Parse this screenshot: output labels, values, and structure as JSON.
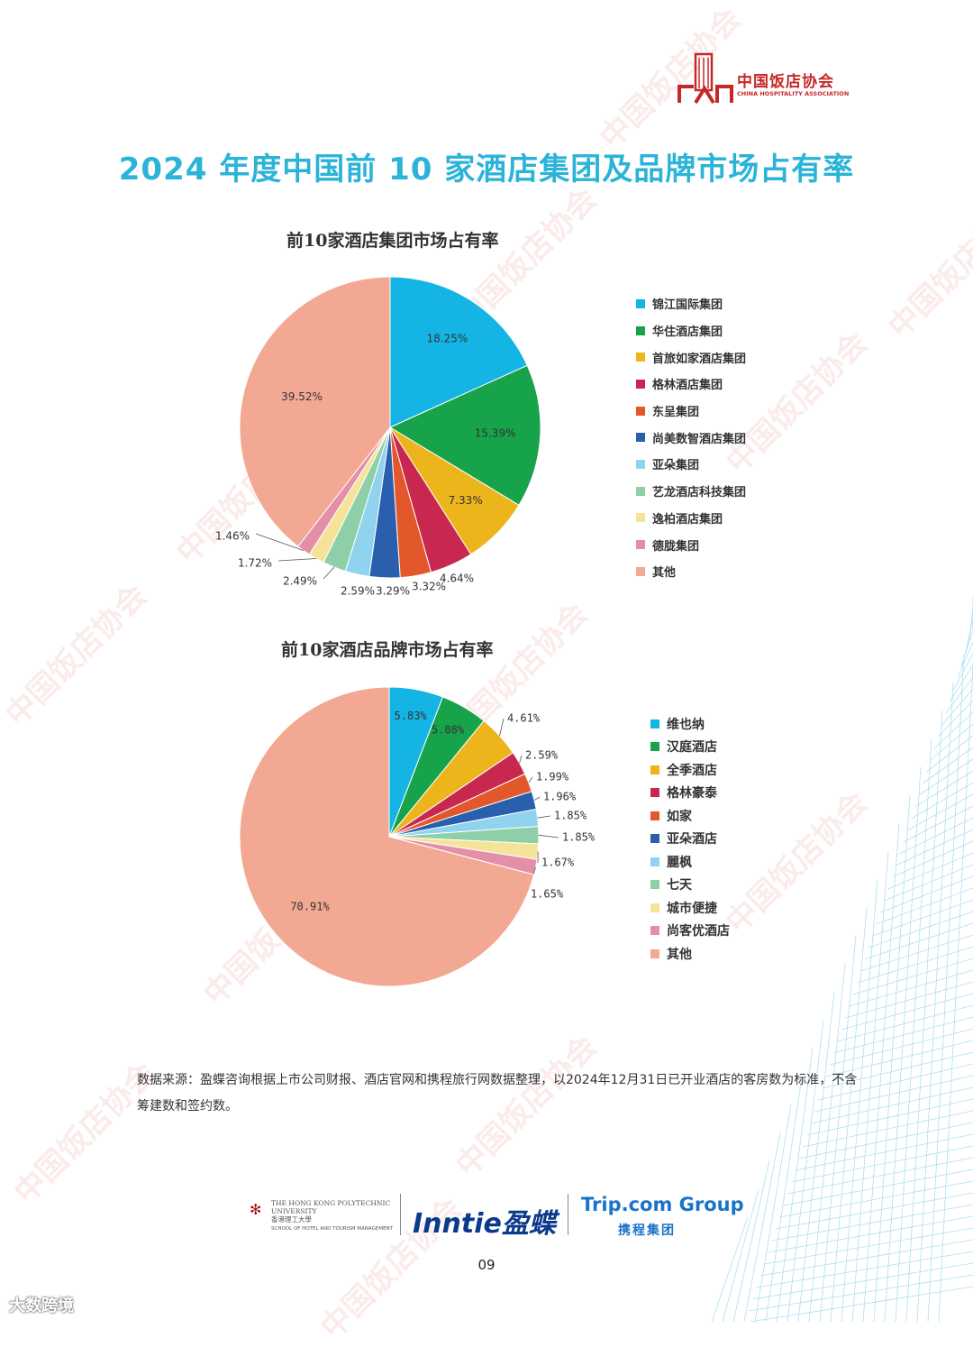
{
  "header": {
    "org_cn": "中国饭店协会",
    "org_en": "CHINA HOSPITALITY ASSOCIATION",
    "title": "2024 年度中国前 10 家酒店集团及品牌市场占有率"
  },
  "watermark_text": "中国饭店协会",
  "chart_data": [
    {
      "type": "pie",
      "title": "前10家酒店集团市场占有率",
      "start": "12 o'clock, clockwise",
      "categories": [
        "锦江国际集团",
        "华住酒店集团",
        "首旅如家酒店集团",
        "格林酒店集团",
        "东呈集团",
        "尚美数智酒店集团",
        "亚朵集团",
        "艺龙酒店科技集团",
        "逸柏酒店集团",
        "德胧集团",
        "其他"
      ],
      "values": [
        18.25,
        15.39,
        7.33,
        4.64,
        3.32,
        3.29,
        2.59,
        2.49,
        1.72,
        1.46,
        39.52
      ],
      "labels": [
        "18.25%",
        "15.39%",
        "7.33%",
        "4.64%",
        "3.32%",
        "3.29%",
        "2.59%",
        "2.49%",
        "1.72%",
        "1.46%",
        "39.52%"
      ],
      "colors": [
        "#14b4e4",
        "#16a34a",
        "#ecb51c",
        "#c8284f",
        "#e2582a",
        "#2a5fae",
        "#8fd3ef",
        "#8fcfa8",
        "#f6e39a",
        "#e48fa8",
        "#f2a892"
      ],
      "legend": "right"
    },
    {
      "type": "pie",
      "title": "前10家酒店品牌市场占有率",
      "start": "12 o'clock, clockwise",
      "categories": [
        "维也纳",
        "汉庭酒店",
        "全季酒店",
        "格林豪泰",
        "如家",
        "亚朵酒店",
        "麗枫",
        "七天",
        "城市便捷",
        "尚客优酒店",
        "其他"
      ],
      "values": [
        5.83,
        5.08,
        4.61,
        2.59,
        1.99,
        1.96,
        1.85,
        1.85,
        1.67,
        1.65,
        70.91
      ],
      "labels": [
        "5.83%",
        "5.08%",
        "4.61%",
        "2.59%",
        "1.99%",
        "1.96%",
        "1.85%",
        "1.85%",
        "1.67%",
        "1.65%",
        "70.91%"
      ],
      "colors": [
        "#14b4e4",
        "#16a34a",
        "#ecb51c",
        "#c8284f",
        "#e2582a",
        "#2a5fae",
        "#8fd3ef",
        "#8fcfa8",
        "#f6e39a",
        "#e48fa8",
        "#f2a892"
      ],
      "legend": "right"
    }
  ],
  "source_note": "数据来源：盈蝶咨询根据上市公司财报、酒店官网和携程旅行网数据整理，以2024年12月31日已开业酒店的客房数为标准，不含筹建数和签约数。",
  "footer": {
    "polyu_en": "THE HONG KONG POLYTECHNIC UNIVERSITY",
    "polyu_cn": "香港理工大學",
    "polyu_school": "SCHOOL OF HOTEL AND TOURISM MANAGEMENT",
    "inntie": "Inntie盈蝶",
    "trip_en": "Trip.com Group",
    "trip_cn": "携程集团",
    "page_number": "09"
  },
  "corner_watermark": "大数跨境"
}
